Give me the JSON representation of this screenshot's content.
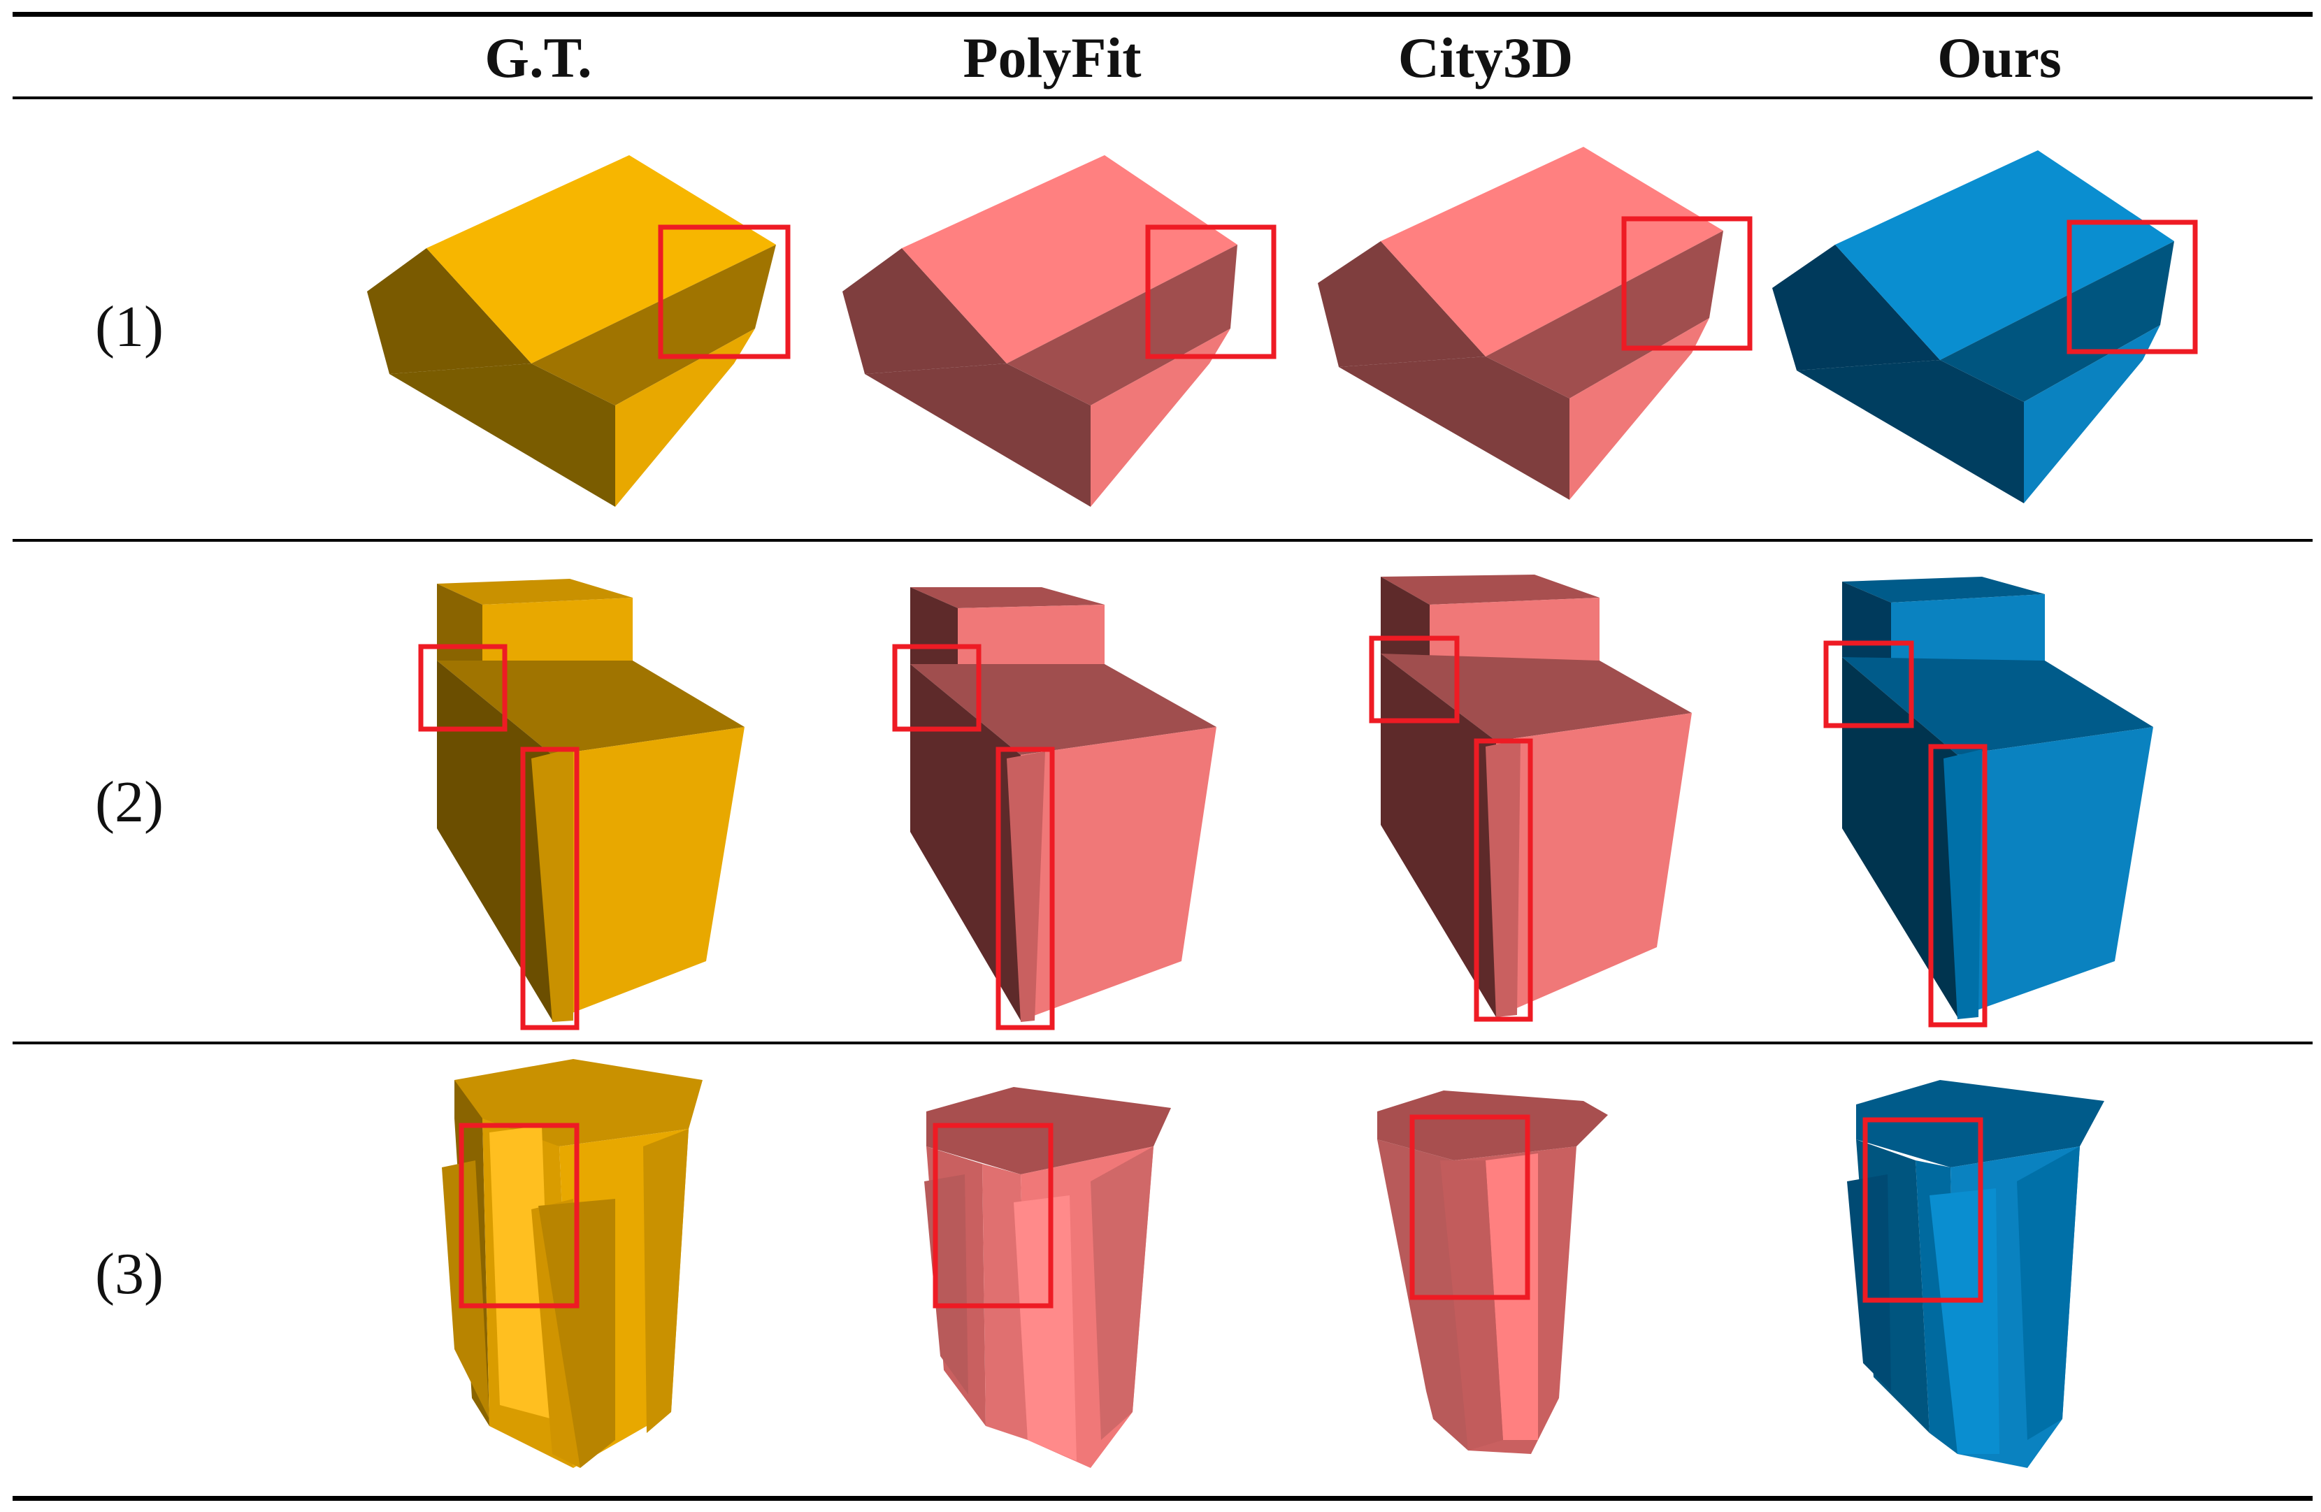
{
  "table": {
    "columns": [
      "",
      "G.T.",
      "PolyFit",
      "City3D",
      "Ours"
    ],
    "rows": [
      {
        "label": "(1)"
      },
      {
        "label": "(2)"
      },
      {
        "label": "(3)"
      }
    ]
  },
  "colors": {
    "gt": "#e8a800",
    "polyfit": "#f07878",
    "city3d": "#f07878",
    "ours": "#0a82c0",
    "highlight": "#ee1b24",
    "rule": "#000000"
  }
}
